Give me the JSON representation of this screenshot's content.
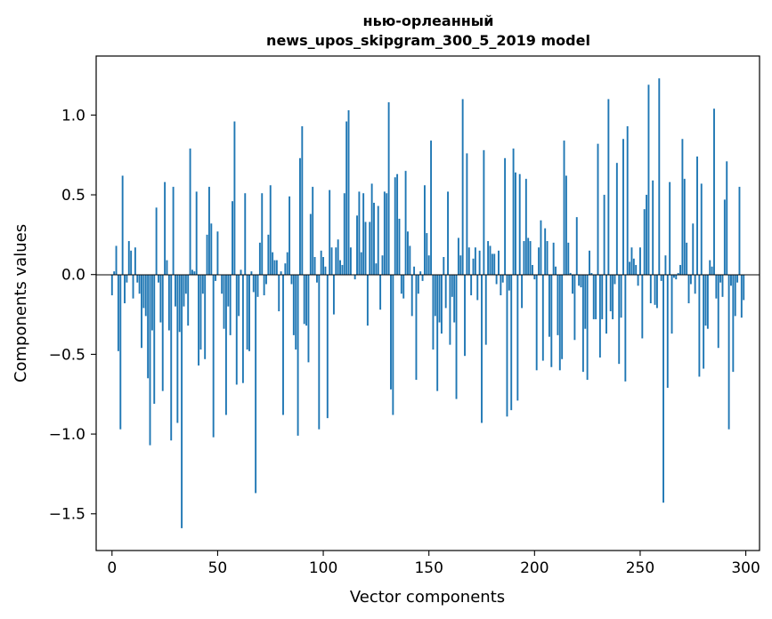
{
  "chart_data": {
    "type": "bar",
    "title_line1": "нью-орлеанный",
    "title_line2": "news_upos_skipgram_300_5_2019 model",
    "xlabel": "Vector components",
    "ylabel": "Components values",
    "xlim": [
      -7.5,
      306.5
    ],
    "ylim": [
      -1.73,
      1.37
    ],
    "grid": false,
    "bar_color": "#1f77b4",
    "x_ticks": [
      {
        "value": 0,
        "label": "0"
      },
      {
        "value": 50,
        "label": "50"
      },
      {
        "value": 100,
        "label": "100"
      },
      {
        "value": 150,
        "label": "150"
      },
      {
        "value": 200,
        "label": "200"
      },
      {
        "value": 250,
        "label": "250"
      },
      {
        "value": 300,
        "label": "300"
      }
    ],
    "y_ticks": [
      {
        "value": -1.5,
        "label": "−1.5"
      },
      {
        "value": -1.0,
        "label": "−1.0"
      },
      {
        "value": -0.5,
        "label": "−0.5"
      },
      {
        "value": 0.0,
        "label": "0.0"
      },
      {
        "value": 0.5,
        "label": "0.5"
      },
      {
        "value": 1.0,
        "label": "1.0"
      }
    ],
    "values": [
      -0.13,
      0.02,
      0.18,
      -0.48,
      -0.97,
      0.62,
      -0.18,
      -0.05,
      0.21,
      0.15,
      -0.15,
      0.17,
      -0.05,
      -0.12,
      -0.46,
      -0.21,
      -0.26,
      -0.65,
      -1.07,
      -0.35,
      -0.81,
      0.42,
      -0.05,
      -0.3,
      -0.73,
      0.58,
      0.09,
      -0.35,
      -1.04,
      0.55,
      -0.2,
      -0.93,
      -0.36,
      -1.59,
      -0.2,
      -0.12,
      -0.32,
      0.79,
      0.03,
      0.02,
      0.52,
      -0.57,
      -0.47,
      -0.12,
      -0.53,
      0.25,
      0.55,
      0.32,
      -1.02,
      -0.04,
      0.27,
      0.0,
      -0.12,
      -0.34,
      -0.88,
      -0.2,
      -0.38,
      0.46,
      0.96,
      -0.69,
      -0.26,
      0.03,
      -0.68,
      0.51,
      -0.47,
      -0.48,
      0.02,
      -0.11,
      -1.37,
      -0.14,
      0.2,
      0.51,
      -0.13,
      -0.06,
      0.25,
      0.56,
      0.14,
      0.09,
      0.09,
      -0.23,
      0.02,
      -0.88,
      0.07,
      0.14,
      0.49,
      -0.06,
      -0.38,
      -0.47,
      -1.01,
      0.73,
      0.93,
      -0.31,
      -0.32,
      -0.55,
      0.38,
      0.55,
      0.11,
      -0.05,
      -0.97,
      0.15,
      0.11,
      0.05,
      -0.9,
      0.53,
      0.17,
      -0.25,
      0.17,
      0.22,
      0.09,
      0.06,
      0.51,
      0.96,
      1.03,
      0.17,
      0.0,
      -0.03,
      0.37,
      0.52,
      0.14,
      0.51,
      0.33,
      -0.32,
      0.33,
      0.57,
      0.45,
      0.07,
      0.43,
      -0.22,
      0.12,
      0.52,
      0.51,
      1.08,
      -0.72,
      -0.88,
      0.61,
      0.63,
      0.35,
      -0.12,
      -0.15,
      0.65,
      0.27,
      0.18,
      -0.26,
      0.05,
      -0.66,
      -0.12,
      0.02,
      -0.04,
      0.56,
      0.26,
      0.12,
      0.84,
      -0.47,
      -0.26,
      -0.73,
      -0.3,
      -0.37,
      0.11,
      -0.21,
      0.52,
      -0.44,
      -0.14,
      -0.3,
      -0.78,
      0.23,
      0.12,
      1.1,
      -0.51,
      0.76,
      0.17,
      -0.13,
      0.1,
      0.17,
      -0.16,
      0.15,
      -0.93,
      0.78,
      -0.44,
      0.21,
      0.18,
      0.13,
      0.13,
      -0.06,
      0.15,
      -0.13,
      -0.05,
      0.73,
      -0.89,
      -0.1,
      -0.85,
      0.79,
      0.64,
      -0.79,
      0.63,
      -0.21,
      0.21,
      0.6,
      0.23,
      0.21,
      0.06,
      -0.03,
      -0.6,
      0.17,
      0.34,
      -0.54,
      0.29,
      0.21,
      -0.39,
      -0.58,
      0.2,
      0.05,
      -0.38,
      -0.6,
      -0.53,
      0.84,
      0.62,
      0.2,
      0.01,
      -0.12,
      -0.41,
      0.36,
      -0.07,
      -0.08,
      -0.61,
      -0.34,
      -0.66,
      0.15,
      0.01,
      -0.28,
      -0.28,
      0.82,
      -0.52,
      -0.28,
      0.5,
      -0.37,
      1.1,
      -0.23,
      -0.28,
      -0.06,
      0.7,
      -0.56,
      -0.27,
      0.85,
      -0.67,
      0.93,
      0.08,
      0.17,
      0.1,
      0.06,
      -0.07,
      0.17,
      -0.4,
      0.41,
      0.5,
      1.19,
      -0.18,
      0.59,
      -0.19,
      -0.21,
      1.23,
      -0.04,
      -1.43,
      0.12,
      -0.71,
      0.58,
      -0.37,
      -0.02,
      -0.03,
      0.01,
      0.06,
      0.85,
      0.6,
      0.2,
      -0.18,
      -0.06,
      0.32,
      -0.12,
      0.74,
      -0.64,
      0.57,
      -0.59,
      -0.32,
      -0.34,
      0.09,
      0.05,
      1.04,
      -0.15,
      -0.46,
      -0.05,
      -0.14,
      0.47,
      0.71,
      -0.97,
      -0.07,
      -0.61,
      -0.26,
      -0.05,
      0.55,
      -0.27,
      -0.16
    ]
  }
}
